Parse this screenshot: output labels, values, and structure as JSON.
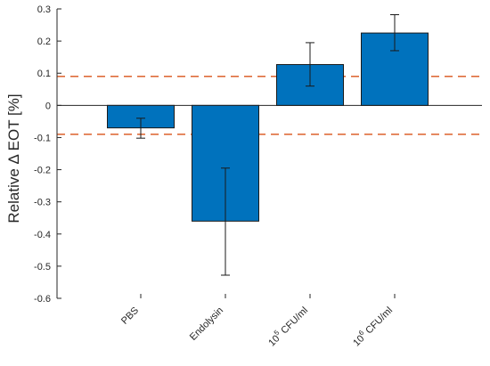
{
  "chart_data": {
    "type": "bar",
    "categories": [
      "PBS",
      "Endolysin",
      "10^5 CFU/ml",
      "10^6 CFU/ml"
    ],
    "category_labels": [
      {
        "base": "",
        "sup": "",
        "rest": "PBS"
      },
      {
        "base": "",
        "sup": "",
        "rest": "Endolysin"
      },
      {
        "base": "10",
        "sup": "5",
        "rest": " CFU/ml"
      },
      {
        "base": "10",
        "sup": "6",
        "rest": " CFU/ml"
      }
    ],
    "values": [
      -0.07,
      -0.36,
      0.127,
      0.225
    ],
    "error_low": [
      -0.102,
      -0.528,
      0.06,
      0.17
    ],
    "error_high": [
      -0.04,
      -0.195,
      0.195,
      0.282
    ],
    "threshold_lines": [
      0.09,
      -0.09
    ],
    "ylabel": "Relative Δ EOT [%]",
    "ylim": [
      -0.6,
      0.3
    ],
    "yticks": [
      0.3,
      0.2,
      0.1,
      0,
      -0.1,
      -0.2,
      -0.3,
      -0.4,
      -0.5,
      -0.6
    ],
    "ytick_labels": [
      "0.3",
      "0.2",
      "0.1",
      "0",
      "-0.1",
      "-0.2",
      "-0.3",
      "-0.4",
      "-0.5",
      "-0.6"
    ],
    "grid": false,
    "colors": {
      "bar_fill": "#0072BD",
      "bar_edge": "#1a1a1a",
      "error_bar": "#1a1a1a",
      "threshold": "#D95319",
      "zero_line": "#262626",
      "axis": "#262626"
    }
  }
}
